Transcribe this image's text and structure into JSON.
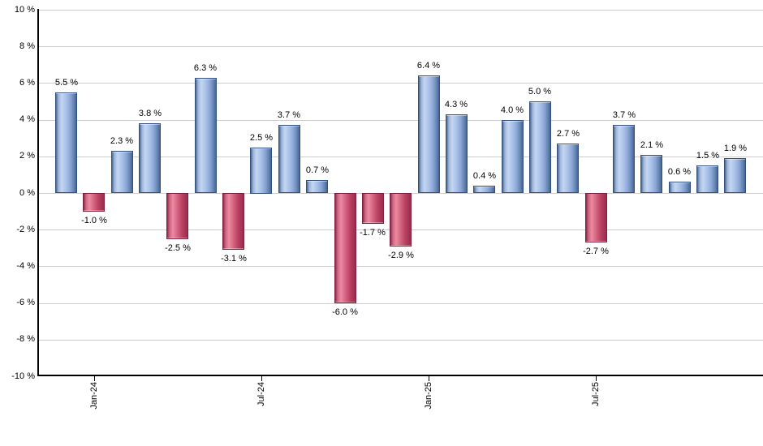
{
  "chart_data": {
    "type": "bar",
    "title": "",
    "xlabel": "",
    "ylabel": "",
    "ylim": [
      -10,
      10
    ],
    "grid": true,
    "legend": false,
    "values": [
      5.5,
      -1.0,
      2.3,
      3.8,
      -2.5,
      6.3,
      -3.1,
      2.5,
      3.7,
      0.7,
      -6.0,
      -1.7,
      -2.9,
      6.4,
      4.3,
      0.4,
      4.0,
      5.0,
      2.7,
      -2.7,
      3.7,
      2.1,
      0.6,
      1.5,
      1.9
    ],
    "value_labels": [
      "5.5 %",
      "-1.0 %",
      "2.3 %",
      "3.8 %",
      "-2.5 %",
      "6.3 %",
      "-3.1 %",
      "2.5 %",
      "3.7 %",
      "0.7 %",
      "-6.0 %",
      "-1.7 %",
      "-2.9 %",
      "6.4 %",
      "4.3 %",
      "0.4 %",
      "4.0 %",
      "5.0 %",
      "2.7 %",
      "-2.7 %",
      "3.7 %",
      "2.1 %",
      "0.6 %",
      "1.5 %",
      "1.9 %"
    ],
    "y_tick_values": [
      10,
      8,
      6,
      4,
      2,
      0,
      -2,
      -4,
      -6,
      -8,
      -10
    ],
    "y_tick_labels": [
      "10 %",
      "8 %",
      "6 %",
      "4 %",
      "2 %",
      "0 %",
      "-2 %",
      "-4 %",
      "-6 %",
      "-8 %",
      "-10 %"
    ],
    "x_tick_labels": [
      "Jan-24",
      "Jul-24",
      "Jan-25",
      "Jul-25"
    ],
    "x_tick_bar_indices": [
      1,
      7,
      13,
      19
    ],
    "colors": {
      "positive_fill": "#a9c1e8",
      "positive_border": "#33517c",
      "negative_fill": "#d4657f",
      "negative_border": "#7c2240",
      "gridline": "#cdcdcd",
      "axis": "#000000",
      "text": "#000000",
      "background": "#ffffff"
    }
  }
}
